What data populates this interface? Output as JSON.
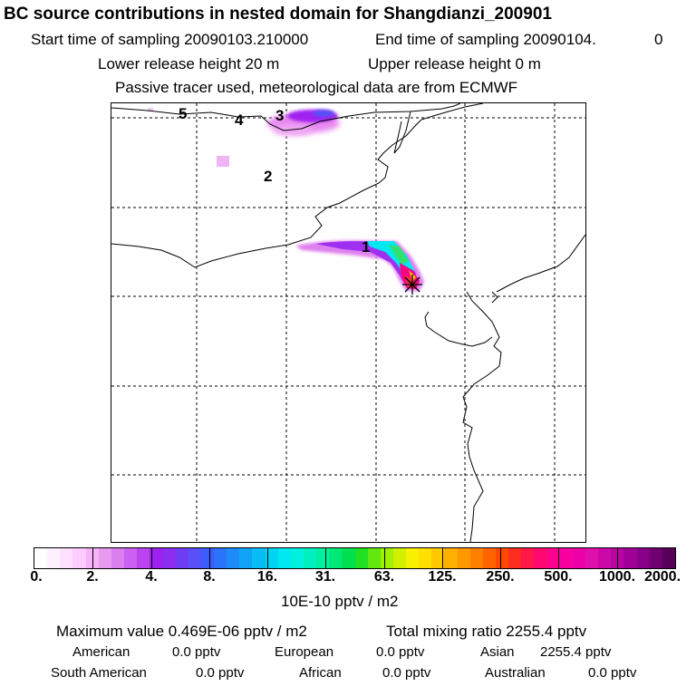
{
  "header": {
    "title": "BC  source contributions in nested domain for Shangdianzi_200901",
    "start_label": "Start time of sampling 20090103.210000",
    "end_label": "End time of sampling 20090104.",
    "end_suffix": "0",
    "lower_release": "Lower release height   20 m",
    "upper_release": "Upper release height    0 m",
    "tracer_note": "Passive tracer used, meteorological data are from ECMWF"
  },
  "map": {
    "source_labels": [
      "1",
      "2",
      "3",
      "4",
      "5"
    ],
    "receptor_marker": "star-marker"
  },
  "colorbar": {
    "tick_labels": [
      "0.",
      "2.",
      "4.",
      "8.",
      "16.",
      "31.",
      "63.",
      "125.",
      "250.",
      "500.",
      "1000.",
      "2000."
    ],
    "units": "10E-10 pptv / m2",
    "colors": [
      "#ffffff",
      "#fff0ff",
      "#ffe0ff",
      "#ffccff",
      "#f7b3f7",
      "#e899f0",
      "#da7ef0",
      "#cc60f2",
      "#bb44f0",
      "#a020f0",
      "#8a2ef0",
      "#6f3ef4",
      "#5850f8",
      "#3c5cfc",
      "#2a74fa",
      "#1e8cf8",
      "#10a4f6",
      "#08bcf6",
      "#00d4f4",
      "#00e8f0",
      "#00f0e0",
      "#00f0c0",
      "#00f0a0",
      "#00e878",
      "#00e050",
      "#20e020",
      "#60e810",
      "#a0f000",
      "#d0f000",
      "#f8f000",
      "#ffe000",
      "#ffc800",
      "#ffb000",
      "#ff9800",
      "#ff8000",
      "#ff6400",
      "#ff4800",
      "#ff2c20",
      "#ff1848",
      "#ff0870",
      "#ff0090",
      "#f800a0",
      "#ec00a8",
      "#e010ac",
      "#cc08a8",
      "#b804a0",
      "#a00098",
      "#880088",
      "#700070",
      "#580058"
    ]
  },
  "footer": {
    "max_value": "Maximum value  0.469E-06 pptv / m2",
    "total_mixing": "Total mixing ratio     2255.4 pptv",
    "regions_row1": [
      {
        "name": "American",
        "value": "0.0 pptv"
      },
      {
        "name": "European",
        "value": "0.0 pptv"
      },
      {
        "name": "Asian",
        "value": "2255.4 pptv"
      }
    ],
    "regions_row2": [
      {
        "name": "South American",
        "value": "0.0 pptv"
      },
      {
        "name": "African",
        "value": "0.0 pptv"
      },
      {
        "name": "Australian",
        "value": "0.0 pptv"
      }
    ]
  }
}
